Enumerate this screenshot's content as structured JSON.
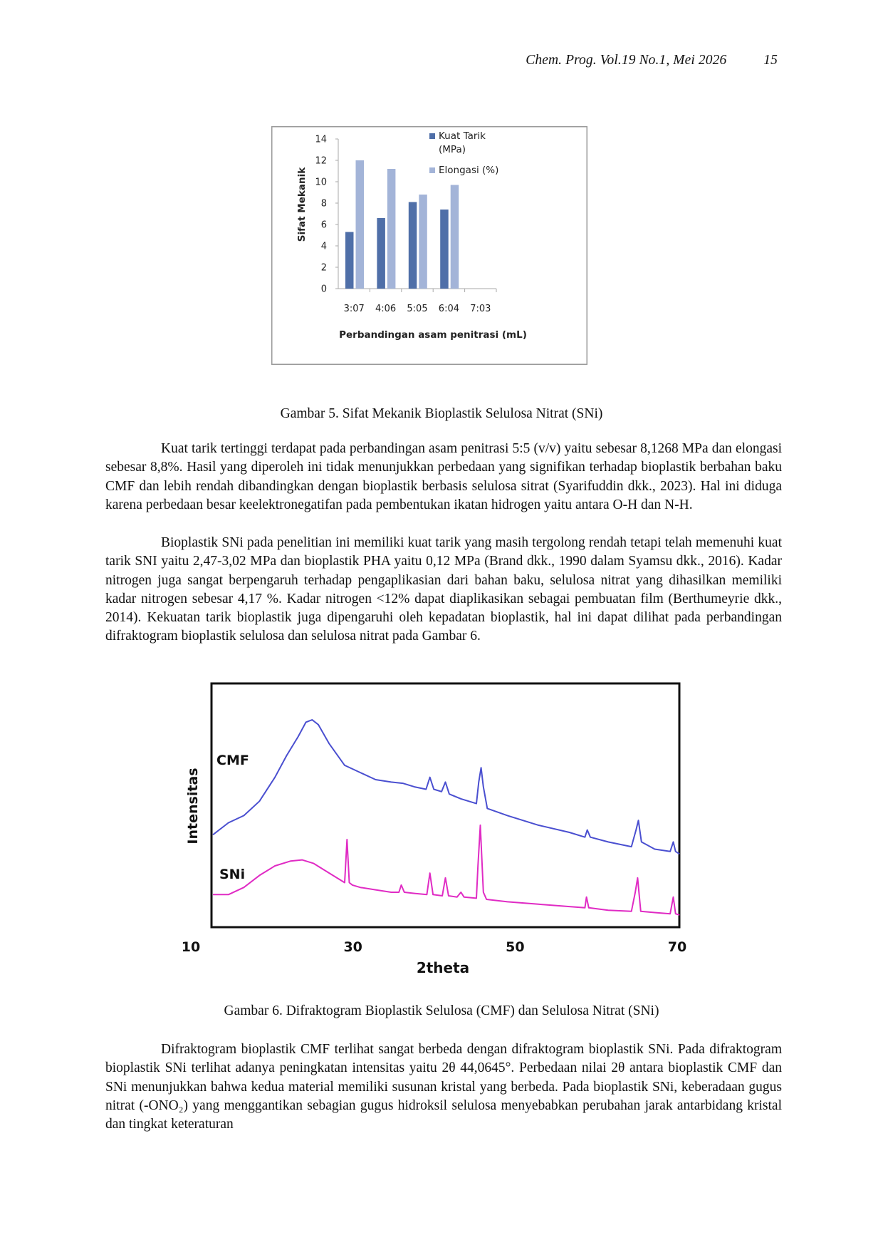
{
  "header": {
    "journal": "Chem. Prog. Vol.19 No.1, Mei 2026",
    "page_number": "15"
  },
  "figure5": {
    "caption": "Gambar 5. Sifat Mekanik Bioplastik Selulosa Nitrat (SNi)",
    "chart_data": {
      "type": "bar",
      "categories": [
        "3:07",
        "4:06",
        "5:05",
        "6:04",
        "7:03"
      ],
      "series": [
        {
          "name": "Kuat Tarik (MPa)",
          "name_lines": [
            "Kuat Tarik",
            "(MPa)"
          ],
          "color": "#4f6fa8",
          "values": [
            5.3,
            6.6,
            8.1,
            7.4,
            null
          ]
        },
        {
          "name": "Elongasi (%)",
          "name_lines": [
            "Elongasi (%)"
          ],
          "color": "#a3b4d8",
          "values": [
            12.0,
            11.2,
            8.8,
            9.7,
            null
          ]
        }
      ],
      "ylabel": "Sifat Mekanik",
      "xlabel": "Perbandingan asam penitrasi (mL)",
      "ylim": [
        0,
        14
      ],
      "yticks": [
        0,
        2,
        4,
        6,
        8,
        10,
        12,
        14
      ],
      "legend_position": "top-right",
      "grid": false
    }
  },
  "paragraph1": "Kuat tarik tertinggi terdapat pada perbandingan asam penitrasi 5:5 (v/v) yaitu sebesar 8,1268 MPa dan elongasi sebesar 8,8%. Hasil yang diperoleh ini tidak menunjukkan perbedaan yang signifikan terhadap bioplastik berbahan baku CMF dan lebih rendah dibandingkan dengan bioplastik berbasis selulosa sitrat (Syarifuddin dkk., 2023). Hal ini diduga karena perbedaan besar keelektronegatifan pada pembentukan ikatan hidrogen yaitu antara O-H dan N-H.",
  "paragraph2": "Bioplastik SNi pada penelitian ini memiliki kuat tarik yang masih tergolong rendah tetapi telah memenuhi kuat tarik SNI yaitu 2,47-3,02 MPa dan bioplastik PHA yaitu 0,12 MPa (Brand dkk., 1990 dalam Syamsu dkk., 2016). Kadar nitrogen juga sangat berpengaruh terhadap pengaplikasian dari bahan baku, selulosa nitrat yang dihasilkan memiliki kadar nitrogen sebesar 4,17 %. Kadar nitrogen <12% dapat diaplikasikan sebagai pembuatan film (Berthumeyrie dkk., 2014). Kekuatan tarik bioplastik juga dipengaruhi oleh kepadatan bioplastik, hal ini dapat dilihat pada perbandingan difraktogram bioplastik selulosa dan selulosa nitrat pada Gambar 6.",
  "figure6": {
    "caption": "Gambar 6. Difraktogram Bioplastik Selulosa (CMF) dan Selulosa Nitrat (SNi)",
    "chart_data": {
      "type": "line",
      "xlabel": "2theta",
      "ylabel": "Intensitas",
      "xlim": [
        10,
        70
      ],
      "ylim": [
        0,
        100
      ],
      "xticks": [
        10,
        30,
        50,
        70
      ],
      "grid": false,
      "series": [
        {
          "name": "CMF",
          "color": "#4a4fd0",
          "x": [
            10,
            12,
            14,
            16,
            18,
            19.5,
            21,
            22,
            22.8,
            23.6,
            25,
            27,
            29,
            31,
            33,
            34.5,
            36,
            37.5,
            38,
            38.5,
            39.5,
            40,
            40.5,
            42,
            44,
            44.3,
            44.6,
            44.9,
            45.4,
            48,
            52,
            56,
            58,
            58.3,
            58.7,
            61,
            64,
            64.6,
            64.9,
            65.3,
            67,
            69,
            69.4,
            69.7,
            70.2
          ],
          "y": [
            38,
            43,
            46,
            52,
            62,
            71,
            79,
            85,
            86,
            84,
            76,
            67,
            64,
            61,
            60,
            59.5,
            58,
            57,
            62,
            57,
            56,
            60,
            55,
            53,
            51,
            60,
            66,
            58,
            49,
            46,
            42,
            39,
            37,
            40,
            37,
            35,
            33,
            40,
            44,
            35,
            32,
            31,
            35,
            31,
            30
          ]
        },
        {
          "name": "SNi",
          "color": "#e02bc4",
          "x": [
            10,
            12,
            14,
            16,
            18,
            20,
            21.5,
            23,
            25,
            27,
            27.3,
            27.6,
            28,
            29,
            31,
            33,
            34,
            34.3,
            34.7,
            36,
            37.6,
            38,
            38.4,
            39.6,
            40,
            40.4,
            41.5,
            42,
            42.4,
            44,
            44.2,
            44.5,
            44.9,
            45.3,
            48,
            52,
            56,
            58,
            58.2,
            58.5,
            61,
            64,
            64.5,
            64.8,
            65.2,
            67,
            69,
            69.4,
            69.7,
            70.2
          ],
          "y": [
            13,
            13,
            16,
            21,
            25,
            27,
            27.5,
            26,
            22,
            18,
            36,
            18,
            17,
            16,
            15,
            14,
            14,
            17,
            14,
            13.5,
            13,
            22,
            13,
            12.5,
            20,
            12.5,
            12,
            14,
            12,
            11.5,
            25,
            42,
            14,
            11,
            10,
            9,
            8,
            7.5,
            12,
            7.5,
            6.5,
            6,
            14,
            20,
            6,
            5.5,
            5,
            12,
            5,
            4.5
          ]
        }
      ]
    }
  },
  "paragraph3": "Difraktogram bioplastik CMF terlihat sangat berbeda dengan difraktogram bioplastik SNi. Pada difraktogram bioplastik SNi terlihat adanya peningkatan intensitas yaitu 2θ 44,0645°. Perbedaan nilai 2θ antara bioplastik CMF dan SNi menunjukkan bahwa kedua material memiliki susunan kristal yang berbeda. Pada bioplastik SNi, keberadaan gugus nitrat (-ONO₂) yang menggantikan sebagian gugus hidroksil selulosa menyebabkan perubahan jarak antarbidang kristal dan tingkat keteraturan"
}
